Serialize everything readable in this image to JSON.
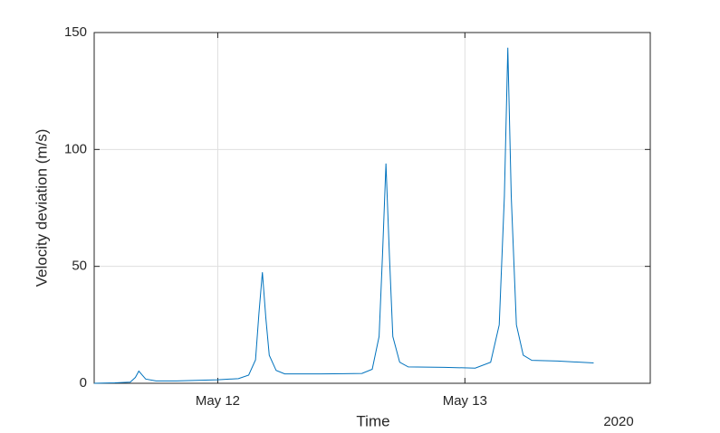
{
  "chart_data": {
    "type": "line",
    "xlabel": "Time",
    "ylabel": "Velocity deviation (m/s)",
    "x_secondary_label": "2020",
    "x": [
      "2020-05-11T12:00",
      "2020-05-11T14:00",
      "2020-05-11T15:30",
      "2020-05-11T16:00",
      "2020-05-11T16:20",
      "2020-05-11T16:40",
      "2020-05-11T17:00",
      "2020-05-11T18:00",
      "2020-05-11T20:00",
      "2020-05-12T00:00",
      "2020-05-12T02:00",
      "2020-05-12T03:00",
      "2020-05-12T03:40",
      "2020-05-12T04:00",
      "2020-05-12T04:20",
      "2020-05-12T04:40",
      "2020-05-12T05:00",
      "2020-05-12T05:40",
      "2020-05-12T06:30",
      "2020-05-12T10:00",
      "2020-05-12T14:00",
      "2020-05-12T15:00",
      "2020-05-12T15:40",
      "2020-05-12T16:00",
      "2020-05-12T16:20",
      "2020-05-12T16:40",
      "2020-05-12T17:00",
      "2020-05-12T17:40",
      "2020-05-12T18:30",
      "2020-05-12T22:00",
      "2020-05-13T01:00",
      "2020-05-13T02:30",
      "2020-05-13T03:20",
      "2020-05-13T03:50",
      "2020-05-13T04:10",
      "2020-05-13T04:30",
      "2020-05-13T05:00",
      "2020-05-13T05:40",
      "2020-05-13T06:30",
      "2020-05-13T09:00",
      "2020-05-13T12:30"
    ],
    "series": [
      {
        "name": "Velocity deviation",
        "color": "#0072bd",
        "values": [
          0,
          0.2,
          0.5,
          2.5,
          5.2,
          3.5,
          1.8,
          1.0,
          1.0,
          1.5,
          2.0,
          3.5,
          10,
          30,
          47.5,
          28,
          12,
          5.5,
          4,
          4,
          4.2,
          6,
          20,
          55,
          94,
          55,
          20,
          9,
          7,
          6.8,
          6.5,
          9,
          25,
          80,
          143.5,
          80,
          25,
          12,
          9.8,
          9.5,
          8.7
        ]
      }
    ],
    "xlim": [
      "2020-05-11T12:00",
      "2020-05-13T18:00"
    ],
    "xticks": [
      {
        "value": "2020-05-12T00:00",
        "label": "May 12"
      },
      {
        "value": "2020-05-13T00:00",
        "label": "May 13"
      }
    ],
    "ylim": [
      0,
      150
    ],
    "yticks": [
      0,
      50,
      100,
      150
    ],
    "grid": true
  }
}
